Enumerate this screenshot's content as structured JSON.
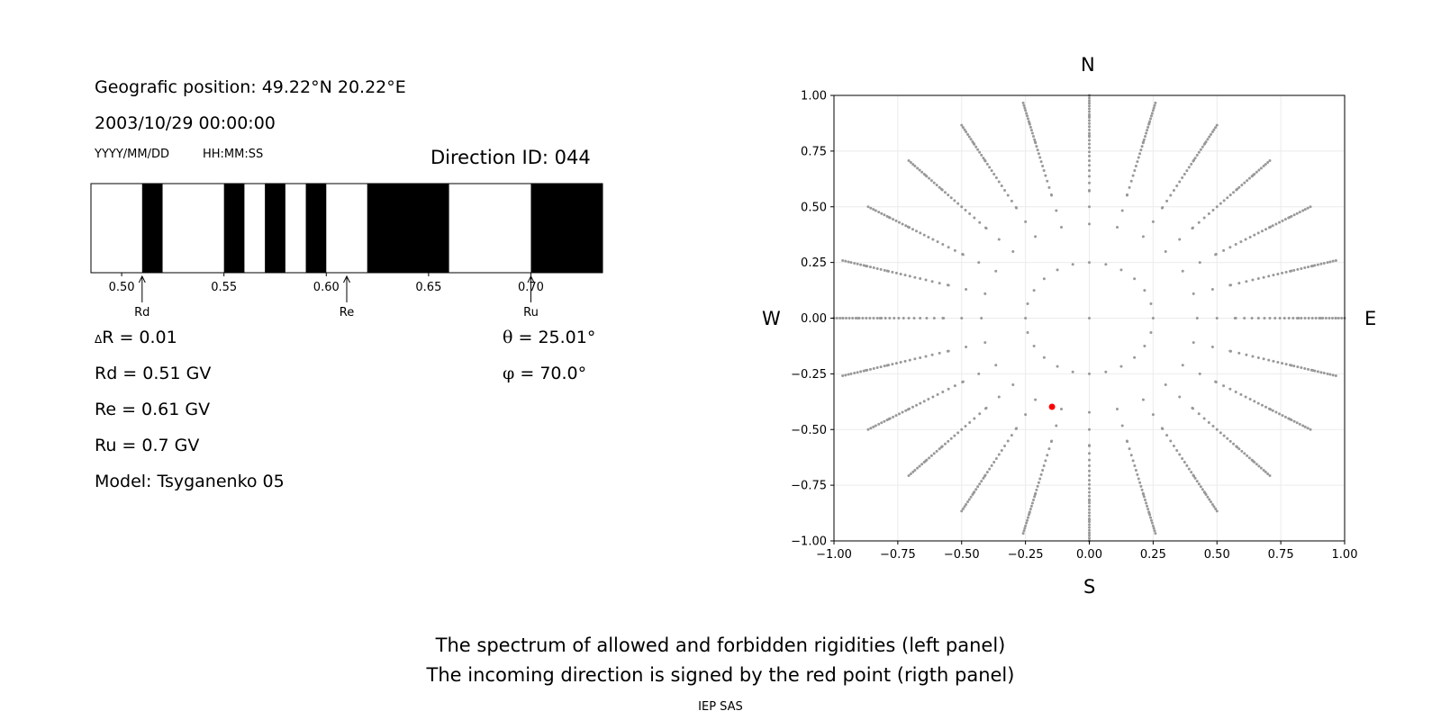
{
  "info": {
    "geo_position": "Geografic position: 49.22°N 20.22°E",
    "datetime": "2003/10/29 00:00:00",
    "date_format": "YYYY/MM/DD",
    "time_format": "HH:MM:SS",
    "direction_id": "Direction ID: 044",
    "delta_r": "R = 0.01",
    "rd": "Rd = 0.51 GV",
    "re": "Re = 0.61 GV",
    "ru": "Ru = 0.7 GV",
    "model": "Model: Tsyganenko 05",
    "theta": "= 25.01°",
    "phi": "= 70.0°"
  },
  "captions": {
    "line1": "The spectrum of allowed and forbidden rigidities (left panel)",
    "line2": "The incoming direction is signed by the red point (rigth panel)",
    "footer": "IEP SAS"
  },
  "chart_data": [
    {
      "type": "bar",
      "name": "rigidity-spectrum",
      "xlim": [
        0.485,
        0.735
      ],
      "x_ticks": [
        0.5,
        0.55,
        0.6,
        0.65,
        0.7
      ],
      "tick_labels": [
        "0.50",
        "0.55",
        "0.60",
        "0.65",
        "0.70"
      ],
      "forbidden_intervals": [
        [
          0.51,
          0.52
        ],
        [
          0.55,
          0.56
        ],
        [
          0.57,
          0.58
        ],
        [
          0.59,
          0.6
        ],
        [
          0.62,
          0.66
        ],
        [
          0.7,
          0.735
        ]
      ],
      "markers": [
        {
          "label": "Rd",
          "value": 0.51
        },
        {
          "label": "Re",
          "value": 0.61
        },
        {
          "label": "Ru",
          "value": 0.7
        }
      ]
    },
    {
      "type": "scatter",
      "name": "direction-map",
      "xlim": [
        -1,
        1
      ],
      "ylim": [
        -1,
        1
      ],
      "x_ticks": [
        -1,
        -0.75,
        -0.5,
        -0.25,
        0,
        0.25,
        0.5,
        0.75,
        1
      ],
      "y_ticks": [
        -1,
        -0.75,
        -0.5,
        -0.25,
        0,
        0.25,
        0.5,
        0.75,
        1
      ],
      "x_tick_labels": [
        "−1.00",
        "−0.75",
        "−0.50",
        "−0.25",
        "0.00",
        "0.25",
        "0.50",
        "0.75",
        "1.00"
      ],
      "y_tick_labels": [
        "−1.00",
        "−0.75",
        "−0.50",
        "−0.25",
        "0.00",
        "0.25",
        "0.50",
        "0.75",
        "1.00"
      ],
      "grid": true,
      "compass": {
        "north": "N",
        "south": "S",
        "west": "W",
        "east": "E"
      },
      "grid_points": {
        "ring_radii": [
          0.25,
          0.4226,
          0.5736,
          0.7071,
          0.8192,
          0.9063,
          0.9659,
          1.0
        ],
        "azimuth_step_deg": 15,
        "outer_rays": 24,
        "outer_ray_r_range": [
          0.5,
          1.0
        ],
        "outer_ray_steps": 26,
        "color": "#999999"
      },
      "highlight_point": {
        "x": -0.146,
        "y": -0.398,
        "color": "#ff0000"
      }
    }
  ]
}
